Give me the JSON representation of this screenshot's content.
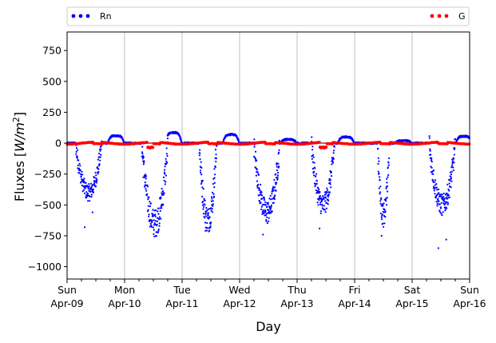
{
  "chart_data": {
    "type": "scatter",
    "xlabel": "Day",
    "ylabel_main": "Fluxes [",
    "ylabel_math": "W/m",
    "ylabel_sup": "2",
    "ylabel_end": "]",
    "x_range_days": [
      0,
      7
    ],
    "ylim": [
      -1100,
      900
    ],
    "yticks": [
      -1000,
      -750,
      -500,
      -250,
      0,
      250,
      500,
      750
    ],
    "xticks": [
      {
        "day": 0,
        "line1": "Sun",
        "line2": "Apr-09"
      },
      {
        "day": 1,
        "line1": "Mon",
        "line2": "Apr-10"
      },
      {
        "day": 2,
        "line1": "Tue",
        "line2": "Apr-11"
      },
      {
        "day": 3,
        "line1": "Wed",
        "line2": "Apr-12"
      },
      {
        "day": 4,
        "line1": "Thu",
        "line2": "Apr-13"
      },
      {
        "day": 5,
        "line1": "Fri",
        "line2": "Apr-14"
      },
      {
        "day": 6,
        "line1": "Sat",
        "line2": "Apr-15"
      },
      {
        "day": 7,
        "line1": "Sun",
        "line2": "Apr-16"
      }
    ],
    "vertical_grid": true,
    "zero_line": true,
    "legend": {
      "placement": "top, above plot"
    },
    "series": [
      {
        "name": "Rn",
        "color": "#0000ff",
        "marker": "dot",
        "daily_dips": [
          {
            "day_start": 0.15,
            "day_end": 0.6,
            "min": -400,
            "outliers": [
              -680,
              -560
            ]
          },
          {
            "day_start": 1.3,
            "day_end": 1.75,
            "min": -650,
            "outliers": []
          },
          {
            "day_start": 2.3,
            "day_end": 2.6,
            "min": -620,
            "outliers": [
              -710
            ]
          },
          {
            "day_start": 3.25,
            "day_end": 3.7,
            "min": -560,
            "outliers": [
              -740
            ]
          },
          {
            "day_start": 4.25,
            "day_end": 4.65,
            "min": -500,
            "outliers": [
              -690
            ]
          },
          {
            "day_start": 5.4,
            "day_end": 5.6,
            "min": -580,
            "outliers": [
              -750
            ]
          },
          {
            "day_start": 6.3,
            "day_end": 6.75,
            "min": -500,
            "outliers": [
              -850,
              -780
            ]
          }
        ],
        "daytime_peaks": [
          {
            "day": 0.85,
            "value": 60
          },
          {
            "day": 1.85,
            "value": 85
          },
          {
            "day": 2.85,
            "value": 70
          },
          {
            "day": 3.85,
            "value": 30
          },
          {
            "day": 4.85,
            "value": 50
          },
          {
            "day": 5.85,
            "value": 20
          },
          {
            "day": 6.9,
            "value": 55
          }
        ]
      },
      {
        "name": "G",
        "color": "#ff0000",
        "marker": "dot",
        "typical_range": [
          -50,
          15
        ]
      }
    ]
  }
}
